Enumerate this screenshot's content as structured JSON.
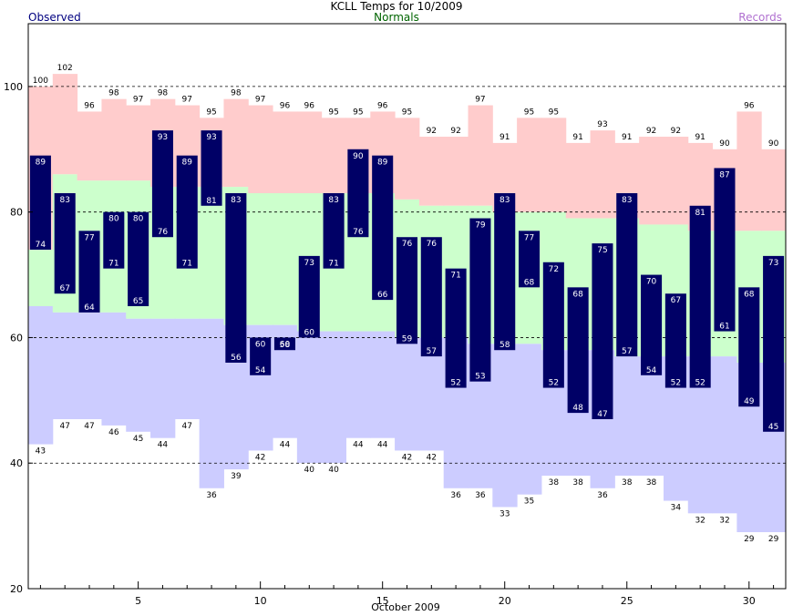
{
  "chart_data": {
    "type": "bar",
    "title": "KCLL Temps for 10/2009",
    "legend": {
      "observed": "Observed",
      "normals": "Normals",
      "records": "Records"
    },
    "xlabel": "October 2009",
    "ylim": [
      20,
      110
    ],
    "yticks": [
      20,
      40,
      60,
      80,
      100
    ],
    "xticks": [
      5,
      10,
      15,
      20,
      25,
      30
    ],
    "days": [
      1,
      2,
      3,
      4,
      5,
      6,
      7,
      8,
      9,
      10,
      11,
      12,
      13,
      14,
      15,
      16,
      17,
      18,
      19,
      20,
      21,
      22,
      23,
      24,
      25,
      26,
      27,
      28,
      29,
      30,
      31
    ],
    "observed_high": [
      89,
      83,
      77,
      80,
      80,
      93,
      89,
      93,
      83,
      60,
      60,
      73,
      83,
      90,
      89,
      76,
      76,
      71,
      79,
      83,
      77,
      72,
      68,
      75,
      83,
      70,
      67,
      81,
      87,
      68,
      73
    ],
    "observed_low": [
      74,
      67,
      64,
      71,
      65,
      76,
      71,
      81,
      56,
      54,
      58,
      60,
      71,
      76,
      66,
      59,
      57,
      52,
      53,
      58,
      68,
      52,
      48,
      47,
      57,
      54,
      52,
      52,
      61,
      49,
      45
    ],
    "record_high": [
      100,
      102,
      96,
      98,
      97,
      98,
      97,
      95,
      98,
      97,
      96,
      96,
      95,
      95,
      96,
      95,
      92,
      92,
      97,
      91,
      95,
      95,
      91,
      93,
      91,
      92,
      92,
      91,
      90,
      96,
      90
    ],
    "record_low": [
      43,
      47,
      47,
      46,
      45,
      44,
      47,
      36,
      39,
      42,
      44,
      40,
      40,
      44,
      44,
      42,
      42,
      36,
      36,
      33,
      35,
      38,
      38,
      36,
      38,
      38,
      34,
      32,
      32,
      29,
      29
    ],
    "normal_high": [
      74,
      86,
      85,
      85,
      85,
      84,
      84,
      84,
      84,
      83,
      83,
      83,
      83,
      83,
      83,
      82,
      81,
      81,
      81,
      80,
      80,
      80,
      79,
      79,
      79,
      78,
      78,
      77,
      77,
      77,
      77
    ],
    "normal_low": [
      65,
      64,
      64,
      64,
      63,
      63,
      63,
      63,
      62,
      62,
      62,
      61,
      61,
      61,
      61,
      60,
      60,
      60,
      59,
      59,
      59,
      58,
      58,
      58,
      57,
      57,
      57,
      57,
      57,
      56,
      56
    ],
    "colors": {
      "observed": "#000066",
      "record_high_band": "#ffcccc",
      "normal_band": "#ccffcc",
      "record_low_band": "#ccccff",
      "observed_label": "#000080",
      "normals_label": "#006400",
      "records_label": "#b070d0"
    }
  }
}
